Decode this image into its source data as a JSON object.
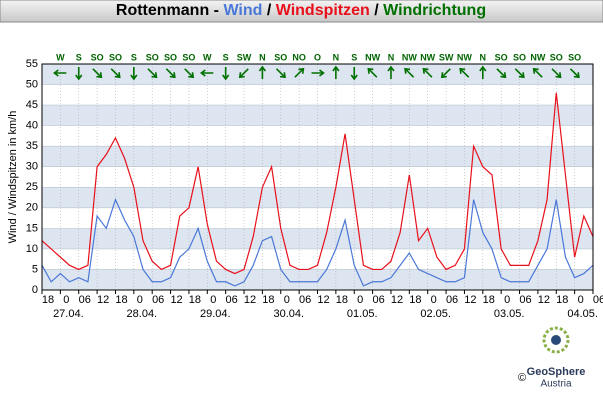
{
  "chart_data": {
    "type": "line",
    "title_prefix": "Rottenmann - ",
    "separator": " / ",
    "direction_title": "Windrichtung",
    "direction_color": "#007000",
    "y_label": "Wind / Windspitzen in km/h",
    "x": [
      -6,
      -3,
      0,
      3,
      6,
      9,
      12,
      15,
      18,
      21,
      24,
      27,
      30,
      33,
      36,
      39,
      42,
      45,
      48,
      51,
      54,
      57,
      60,
      63,
      66,
      69,
      72,
      75,
      78,
      81,
      84,
      87,
      90,
      93,
      96,
      99,
      102,
      105,
      108,
      111,
      114,
      117,
      120,
      123,
      126,
      129,
      132,
      135,
      138,
      141,
      144,
      147,
      150,
      153,
      156,
      159,
      162,
      165,
      168,
      171,
      174
    ],
    "series": [
      {
        "name": "Wind",
        "color": "#4a78d8",
        "values": [
          6,
          2,
          4,
          2,
          3,
          2,
          18,
          15,
          22,
          17,
          13,
          5,
          2,
          2,
          3,
          8,
          10,
          15,
          7,
          2,
          2,
          1,
          2,
          6,
          12,
          13,
          5,
          2,
          2,
          2,
          2,
          5,
          10,
          17,
          6,
          1,
          2,
          2,
          3,
          6,
          9,
          5,
          4,
          3,
          2,
          2,
          3,
          22,
          14,
          10,
          3,
          2,
          2,
          2,
          6,
          10,
          22,
          8,
          3,
          4,
          6
        ]
      },
      {
        "name": "Windspitzen",
        "color": "#e8101a",
        "values": [
          12,
          10,
          8,
          6,
          5,
          6,
          30,
          33,
          37,
          32,
          25,
          12,
          7,
          5,
          6,
          18,
          20,
          30,
          16,
          7,
          5,
          4,
          5,
          13,
          25,
          30,
          15,
          6,
          5,
          5,
          6,
          14,
          25,
          38,
          22,
          6,
          5,
          5,
          7,
          14,
          28,
          12,
          15,
          8,
          5,
          6,
          10,
          35,
          30,
          28,
          10,
          6,
          6,
          6,
          12,
          22,
          48,
          28,
          8,
          18,
          13
        ]
      }
    ],
    "xlim": [
      -6,
      174
    ],
    "ylim": [
      0,
      55
    ],
    "yticks": [
      0,
      5,
      10,
      15,
      20,
      25,
      30,
      35,
      40,
      45,
      50,
      55
    ],
    "xticks": [
      {
        "value": -6,
        "label": "18"
      },
      {
        "value": 0,
        "label": "0"
      },
      {
        "value": 6,
        "label": "06"
      },
      {
        "value": 12,
        "label": "12"
      },
      {
        "value": 18,
        "label": "18"
      },
      {
        "value": 24,
        "label": "0"
      },
      {
        "value": 30,
        "label": "06"
      },
      {
        "value": 36,
        "label": "12"
      },
      {
        "value": 42,
        "label": "18"
      },
      {
        "value": 48,
        "label": "0"
      },
      {
        "value": 54,
        "label": "06"
      },
      {
        "value": 60,
        "label": "12"
      },
      {
        "value": 66,
        "label": "18"
      },
      {
        "value": 72,
        "label": "0"
      },
      {
        "value": 78,
        "label": "06"
      },
      {
        "value": 84,
        "label": "12"
      },
      {
        "value": 90,
        "label": "18"
      },
      {
        "value": 96,
        "label": "0"
      },
      {
        "value": 102,
        "label": "06"
      },
      {
        "value": 108,
        "label": "12"
      },
      {
        "value": 114,
        "label": "18"
      },
      {
        "value": 120,
        "label": "0"
      },
      {
        "value": 126,
        "label": "06"
      },
      {
        "value": 132,
        "label": "12"
      },
      {
        "value": 138,
        "label": "18"
      },
      {
        "value": 144,
        "label": "0"
      },
      {
        "value": 150,
        "label": "06"
      },
      {
        "value": 156,
        "label": "12"
      },
      {
        "value": 162,
        "label": "18"
      },
      {
        "value": 168,
        "label": "0"
      },
      {
        "value": 174,
        "label": "06"
      }
    ],
    "date_labels": [
      {
        "value": 0,
        "label": "27.04."
      },
      {
        "value": 24,
        "label": "28.04."
      },
      {
        "value": 48,
        "label": "29.04."
      },
      {
        "value": 72,
        "label": "30.04."
      },
      {
        "value": 96,
        "label": "01.05."
      },
      {
        "value": 120,
        "label": "02.05."
      },
      {
        "value": 144,
        "label": "03.05."
      },
      {
        "value": 168,
        "label": "04.05."
      }
    ],
    "direction_x": [
      0,
      6,
      12,
      18,
      24,
      30,
      36,
      42,
      48,
      54,
      60,
      66,
      72,
      78,
      84,
      90,
      96,
      102,
      108,
      114,
      120,
      126,
      132,
      138,
      144,
      150,
      156,
      162,
      168
    ],
    "directions": [
      "W",
      "S",
      "SO",
      "SO",
      "S",
      "SO",
      "SO",
      "SO",
      "W",
      "S",
      "SW",
      "N",
      "SO",
      "NO",
      "O",
      "N",
      "S",
      "NW",
      "N",
      "NW",
      "NW",
      "SW",
      "NW",
      "N",
      "SO",
      "SO",
      "NW",
      "SO",
      "SO"
    ],
    "grid": true,
    "logo": {
      "name": "GeoSphere",
      "sub": "Austria",
      "copyright": "©"
    }
  }
}
